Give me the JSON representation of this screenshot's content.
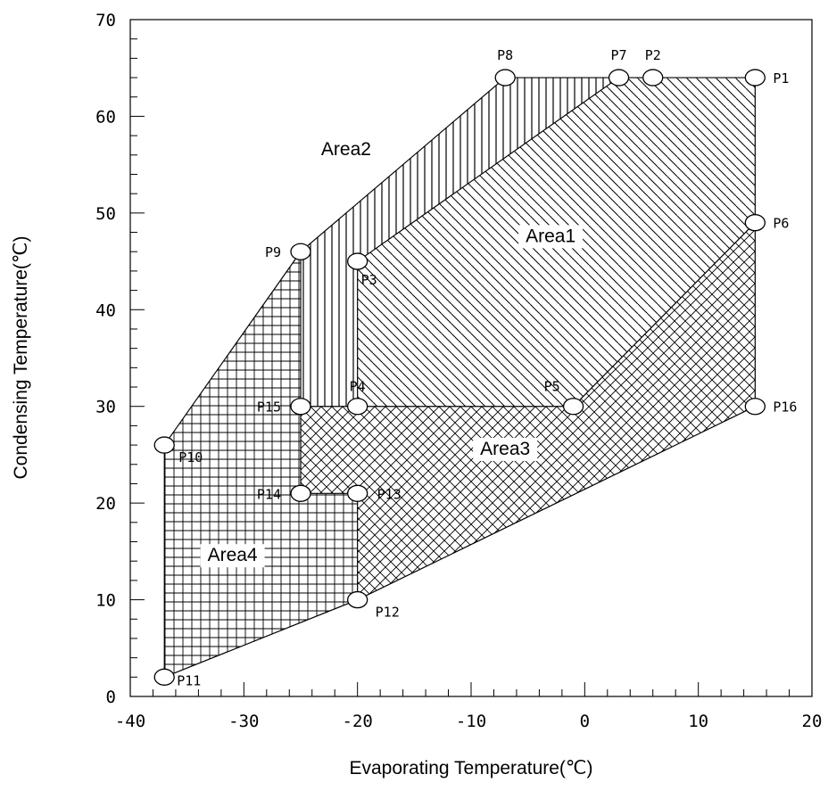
{
  "chart_data": {
    "type": "scatter",
    "xlabel": "Evaporating Temperature(℃)",
    "ylabel": "Condensing Temperature(℃)",
    "xlim": [
      -40,
      20
    ],
    "ylim": [
      0,
      70
    ],
    "xticks": [
      -40,
      -30,
      -20,
      -10,
      0,
      10,
      20
    ],
    "yticks": [
      0,
      10,
      20,
      30,
      40,
      50,
      60,
      70
    ],
    "grid": false,
    "points": [
      {
        "name": "P1",
        "x": 15,
        "y": 64
      },
      {
        "name": "P2",
        "x": 6,
        "y": 64
      },
      {
        "name": "P3",
        "x": -20,
        "y": 45
      },
      {
        "name": "P4",
        "x": -20,
        "y": 30
      },
      {
        "name": "P5",
        "x": -1,
        "y": 30
      },
      {
        "name": "P6",
        "x": 15,
        "y": 49
      },
      {
        "name": "P7",
        "x": 3,
        "y": 64
      },
      {
        "name": "P8",
        "x": -7,
        "y": 64
      },
      {
        "name": "P9",
        "x": -25,
        "y": 46
      },
      {
        "name": "P10",
        "x": -37,
        "y": 26
      },
      {
        "name": "P11",
        "x": -37,
        "y": 2
      },
      {
        "name": "P12",
        "x": -20,
        "y": 10
      },
      {
        "name": "P13",
        "x": -20,
        "y": 21
      },
      {
        "name": "P14",
        "x": -25,
        "y": 21
      },
      {
        "name": "P15",
        "x": -25,
        "y": 30
      },
      {
        "name": "P16",
        "x": 15,
        "y": 30
      }
    ],
    "areas": [
      {
        "name": "Area1",
        "vertices": [
          "P3",
          "P4",
          "P5",
          "P6",
          "P1",
          "P7"
        ],
        "label_pos": [
          -3,
          47
        ],
        "hatch": "diagonal"
      },
      {
        "name": "Area2",
        "vertices": [
          "P9",
          "P8",
          "P7",
          "P3",
          "P4",
          "P15"
        ],
        "label_pos": [
          -21,
          56
        ],
        "hatch": "vertical"
      },
      {
        "name": "Area3",
        "vertices": [
          "P15",
          "P4",
          "P5",
          "P6",
          "P16",
          "P12",
          "P13",
          "P14"
        ],
        "label_pos": [
          -7,
          25
        ],
        "hatch": "crosshatch"
      },
      {
        "name": "Area4",
        "vertices": [
          "P9",
          "P15",
          "P14",
          "P13",
          "P12",
          "P11",
          "P10"
        ],
        "label_pos": [
          -31,
          14
        ],
        "hatch": "grid"
      }
    ]
  }
}
